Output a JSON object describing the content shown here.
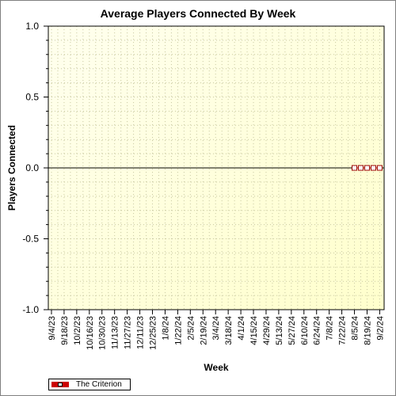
{
  "chart_data": {
    "type": "line",
    "title": "Average Players Connected By Week",
    "xlabel": "Week",
    "ylabel": "Players Connected",
    "ylim": [
      -1.0,
      1.0
    ],
    "y_ticks": [
      "1.0",
      "0.5",
      "0.0",
      "-0.5",
      "-1.0"
    ],
    "y_tick_values": [
      1.0,
      0.5,
      0.0,
      -0.5,
      -1.0
    ],
    "x_tick_labels": [
      "9/4/23",
      "9/18/23",
      "10/2/23",
      "10/16/23",
      "10/30/23",
      "11/13/23",
      "11/27/23",
      "12/11/23",
      "12/25/23",
      "1/8/24",
      "1/22/24",
      "2/5/24",
      "2/19/24",
      "3/4/24",
      "3/18/24",
      "4/1/24",
      "4/15/24",
      "4/29/24",
      "5/13/24",
      "5/27/24",
      "6/10/24",
      "6/24/24",
      "7/8/24",
      "7/22/24",
      "8/5/24",
      "8/19/24",
      "9/2/24"
    ],
    "grid": true,
    "legend_position": "bottom-left",
    "series": [
      {
        "name": "The Criterion",
        "color": "#cc0000",
        "x": [
          "8/5/24",
          "8/12/24",
          "8/19/24",
          "8/26/24",
          "9/2/24"
        ],
        "values": [
          0,
          0,
          0,
          0,
          0
        ]
      }
    ]
  }
}
